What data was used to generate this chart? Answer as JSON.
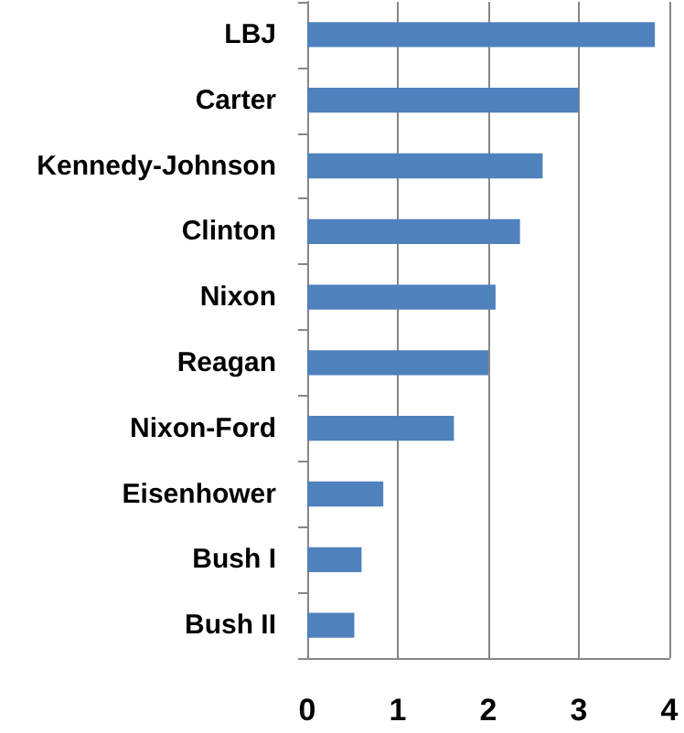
{
  "chart_data": {
    "type": "bar",
    "orientation": "horizontal",
    "categories": [
      "LBJ",
      "Carter",
      "Kennedy-Johnson",
      "Clinton",
      "Nixon",
      "Reagan",
      "Nixon-Ford",
      "Eisenhower",
      "Bush I",
      "Bush II"
    ],
    "values": [
      3.84,
      3.0,
      2.6,
      2.35,
      2.08,
      2.0,
      1.62,
      0.84,
      0.6,
      0.52
    ],
    "color": "#4f81bd",
    "xlim": [
      0,
      4
    ],
    "xticks": [
      0,
      1,
      2,
      3,
      4
    ],
    "grid": "x"
  }
}
